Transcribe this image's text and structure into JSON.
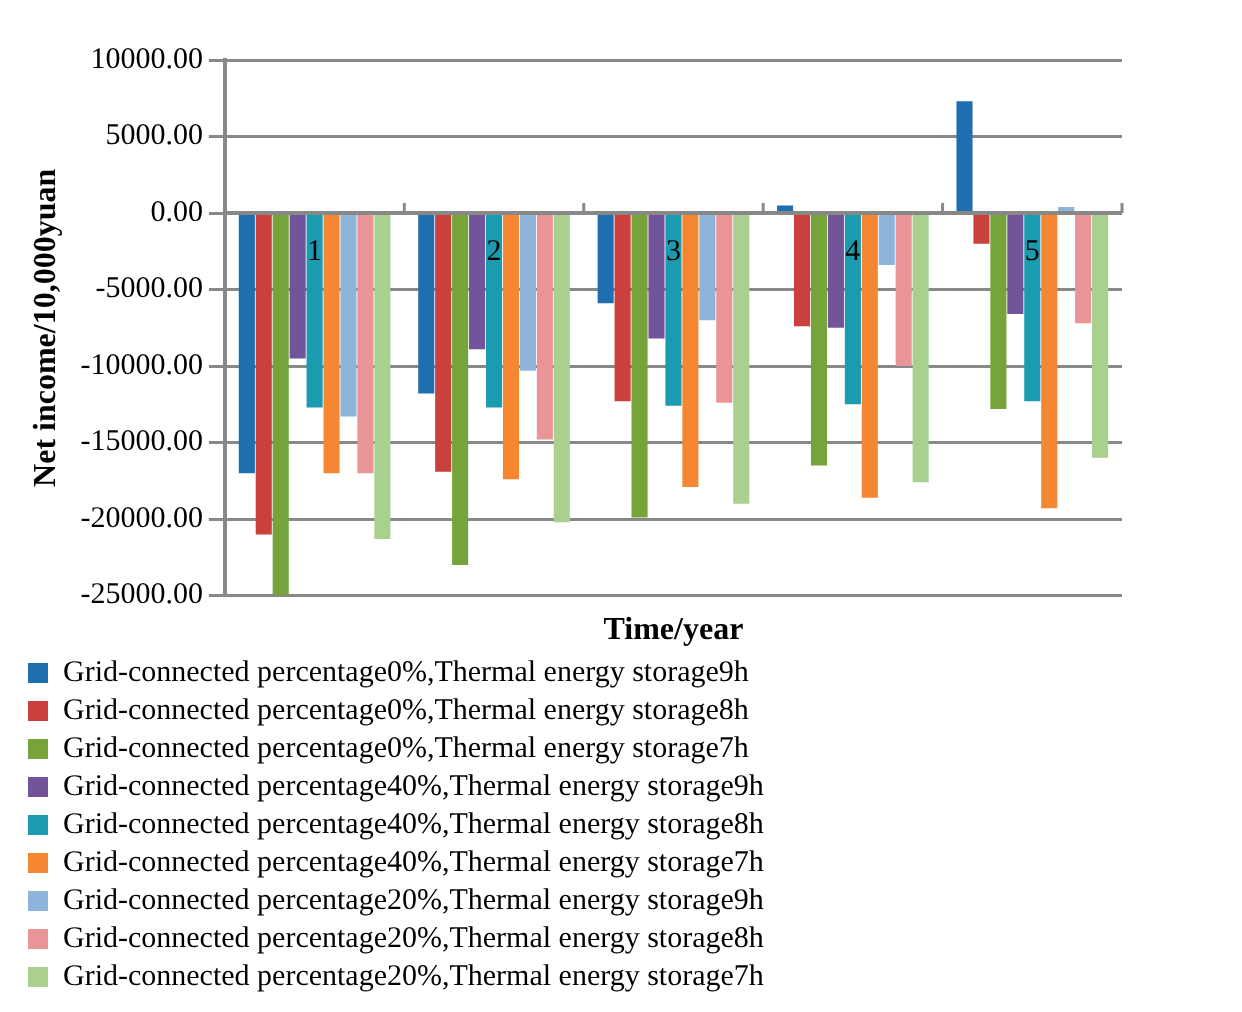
{
  "chart_data": {
    "type": "bar",
    "xlabel": "Time/year",
    "ylabel": "Net income/10,000yuan",
    "categories": [
      "1",
      "2",
      "3",
      "4",
      "5"
    ],
    "series": [
      {
        "name": "Grid-connected percentage0%,Thermal energy storage9h",
        "color": "#1f6fb0",
        "values": [
          -17000,
          -11800,
          -5900,
          500,
          7300
        ]
      },
      {
        "name": "Grid-connected percentage0%,Thermal energy storage8h",
        "color": "#c9403c",
        "values": [
          -21000,
          -16900,
          -12300,
          -7400,
          -2000
        ]
      },
      {
        "name": "Grid-connected percentage0%,Thermal energy storage7h",
        "color": "#76a33a",
        "values": [
          -25000,
          -23000,
          -19900,
          -16500,
          -12800
        ]
      },
      {
        "name": "Grid-connected percentage40%,Thermal energy storage9h",
        "color": "#72549a",
        "values": [
          -9500,
          -8900,
          -8200,
          -7500,
          -6600
        ]
      },
      {
        "name": "Grid-connected percentage40%,Thermal energy storage8h",
        "color": "#1a9bb0",
        "values": [
          -12700,
          -12700,
          -12600,
          -12500,
          -12300
        ]
      },
      {
        "name": "Grid-connected percentage40%,Thermal energy storage7h",
        "color": "#f58632",
        "values": [
          -17000,
          -17400,
          -17900,
          -18600,
          -19300
        ]
      },
      {
        "name": "Grid-connected percentage20%,Thermal energy storage9h",
        "color": "#8eb4dc",
        "values": [
          -13300,
          -10300,
          -7000,
          -3400,
          400
        ]
      },
      {
        "name": "Grid-connected percentage20%,Thermal energy storage8h",
        "color": "#e99597",
        "values": [
          -17000,
          -14800,
          -12400,
          -10000,
          -7200
        ]
      },
      {
        "name": "Grid-connected percentage20%,Thermal energy storage7h",
        "color": "#a9d08e",
        "values": [
          -21300,
          -20200,
          -19000,
          -17600,
          -16000
        ]
      }
    ],
    "ylim": [
      -25000,
      10000
    ],
    "yticks": [
      {
        "value": -25000,
        "label": "-25000.00"
      },
      {
        "value": -20000,
        "label": "-20000.00"
      },
      {
        "value": -15000,
        "label": "-15000.00"
      },
      {
        "value": -10000,
        "label": "-10000.00"
      },
      {
        "value": -5000,
        "label": "-5000.00"
      },
      {
        "value": 0,
        "label": "0.00"
      },
      {
        "value": 5000,
        "label": "5000.00"
      },
      {
        "value": 10000,
        "label": "10000.00"
      }
    ],
    "grid": "y",
    "legend": "bottom"
  }
}
